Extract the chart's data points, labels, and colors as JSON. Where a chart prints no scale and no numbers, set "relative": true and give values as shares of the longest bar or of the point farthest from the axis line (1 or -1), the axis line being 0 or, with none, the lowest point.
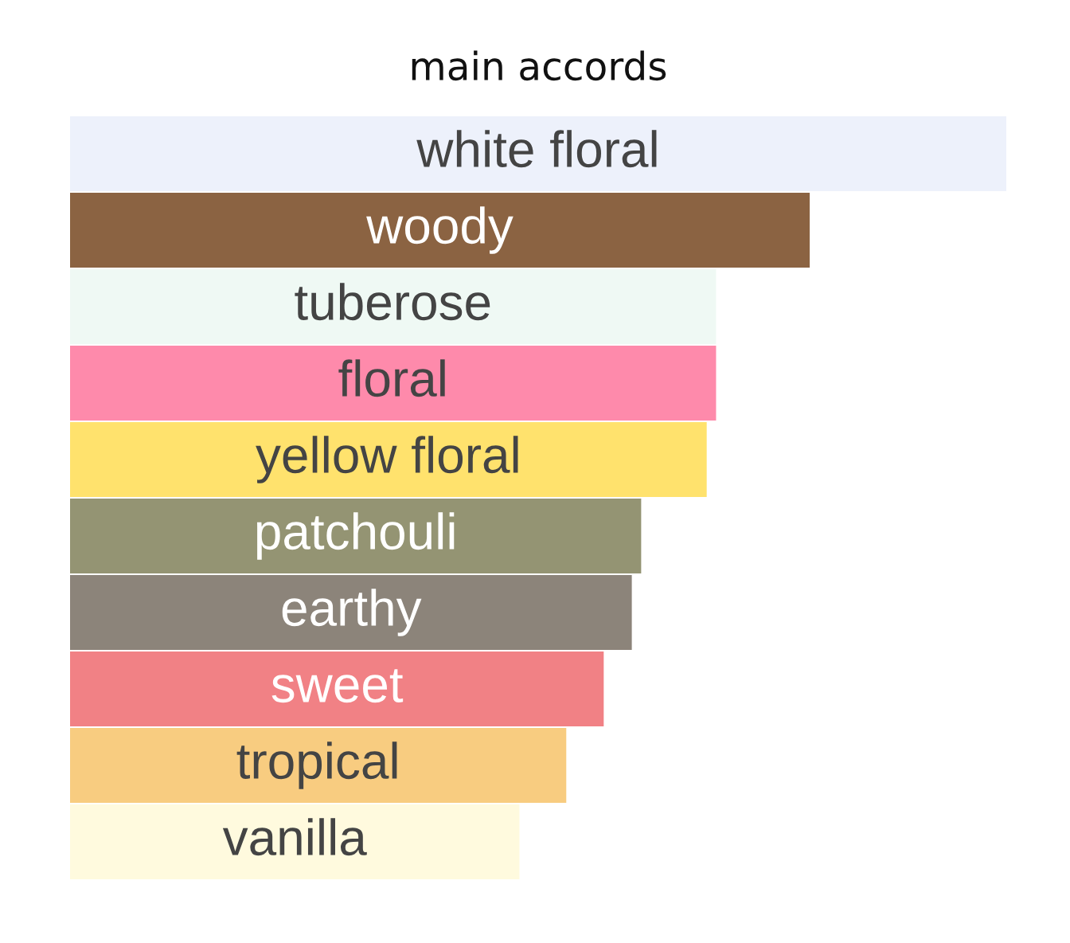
{
  "chart_data": {
    "type": "bar",
    "orientation": "horizontal",
    "relative": true,
    "title": "main accords",
    "categories": [
      "white floral",
      "woody",
      "tuberose",
      "floral",
      "yellow floral",
      "patchouli",
      "earthy",
      "sweet",
      "tropical",
      "vanilla"
    ],
    "values": [
      1,
      0.79,
      0.69,
      0.69,
      0.68,
      0.61,
      0.6,
      0.57,
      0.53,
      0.48
    ],
    "colors": [
      "#edf1fb",
      "#8b6342",
      "#eff9f4",
      "#fe8aab",
      "#ffe26d",
      "#949473",
      "#8c847a",
      "#f18185",
      "#f8cc80",
      "#fffade"
    ]
  }
}
